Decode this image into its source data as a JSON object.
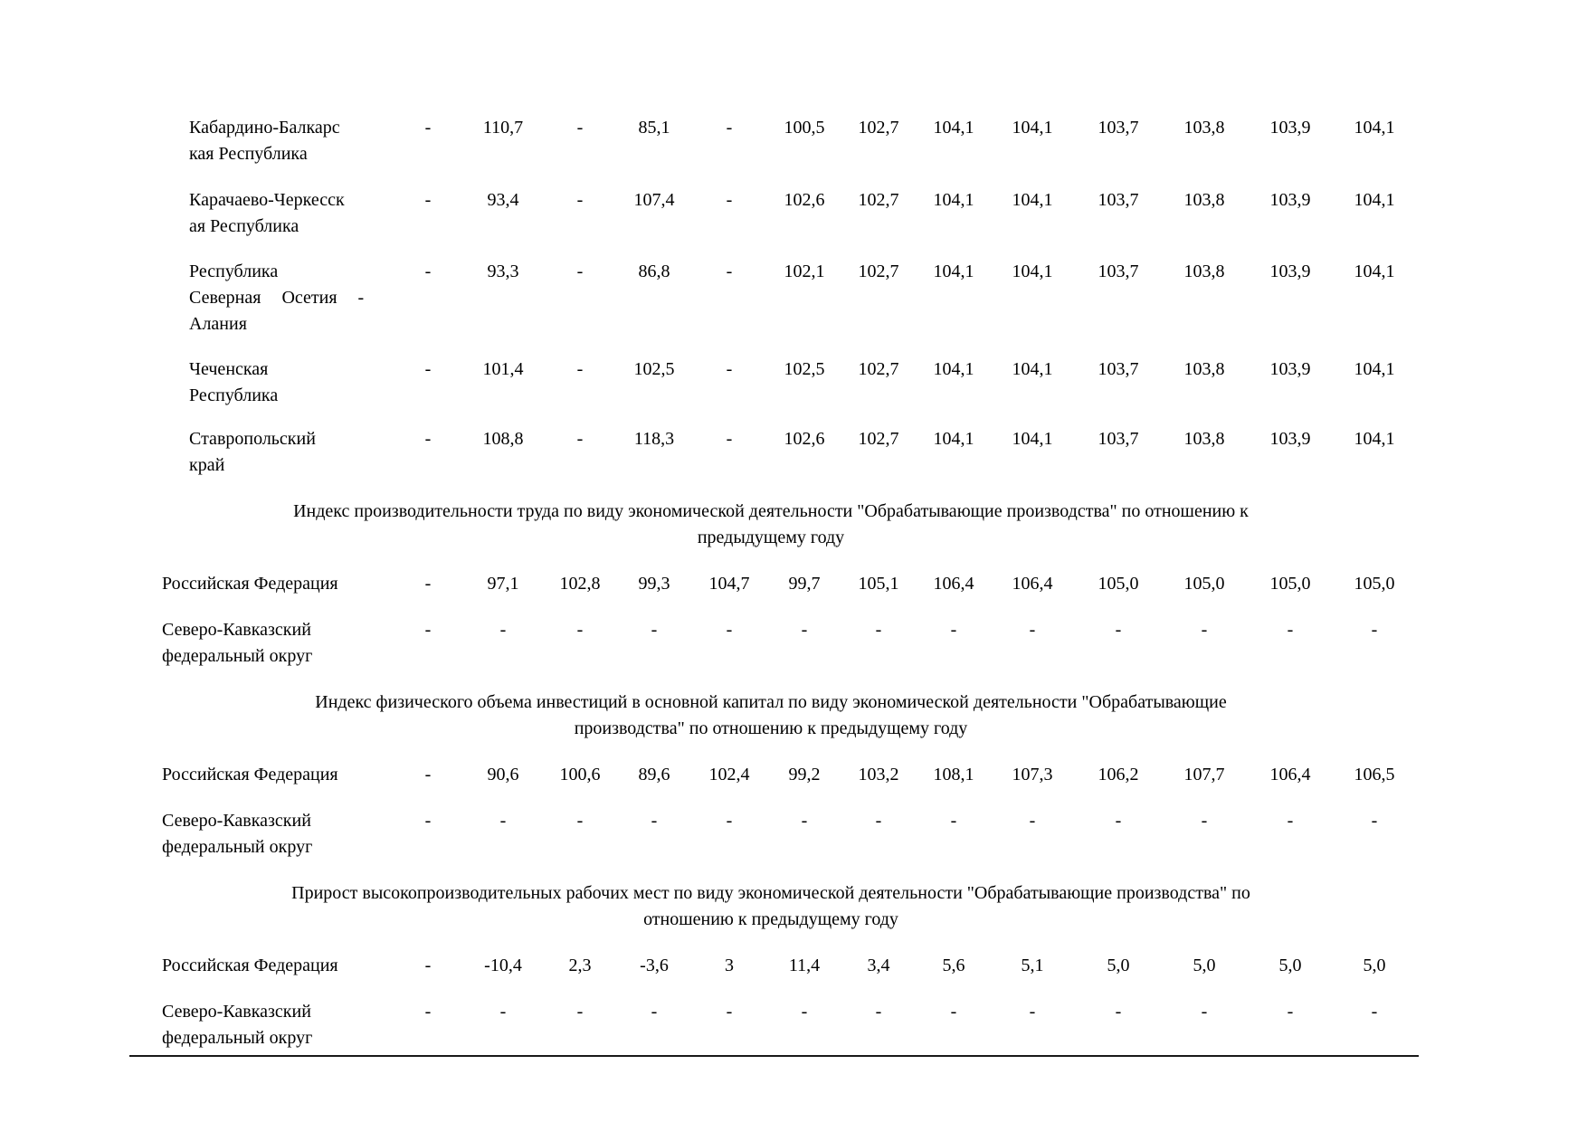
{
  "document": {
    "colors": {
      "background": "#ffffff",
      "text": "#000000",
      "rule": "#191919"
    },
    "region_block": {
      "rows": [
        {
          "label_lines": [
            "Кабардино-Балкарс",
            "кая Республика"
          ],
          "values": [
            "-",
            "110,7",
            "-",
            "85,1",
            "-",
            "100,5",
            "102,7",
            "104,1",
            "104,1",
            "103,7",
            "103,8",
            "103,9",
            "104,1"
          ]
        },
        {
          "label_lines": [
            "Карачаево-Черкесск",
            "ая Республика"
          ],
          "values": [
            "-",
            "93,4",
            "-",
            "107,4",
            "-",
            "102,6",
            "102,7",
            "104,1",
            "104,1",
            "103,7",
            "103,8",
            "103,9",
            "104,1"
          ]
        },
        {
          "label_lines": [
            "Республика",
            "Северная Осетия -",
            "Алания"
          ],
          "justify_line": 1,
          "values": [
            "-",
            "93,3",
            "-",
            "86,8",
            "-",
            "102,1",
            "102,7",
            "104,1",
            "104,1",
            "103,7",
            "103,8",
            "103,9",
            "104,1"
          ]
        },
        {
          "label_lines": [
            "Чеченская",
            "Республика"
          ],
          "values": [
            "-",
            "101,4",
            "-",
            "102,5",
            "-",
            "102,5",
            "102,7",
            "104,1",
            "104,1",
            "103,7",
            "103,8",
            "103,9",
            "104,1"
          ]
        },
        {
          "label_lines": [
            "Ставропольский",
            "край"
          ],
          "values": [
            "-",
            "108,8",
            "-",
            "118,3",
            "-",
            "102,6",
            "102,7",
            "104,1",
            "104,1",
            "103,7",
            "103,8",
            "103,9",
            "104,1"
          ]
        }
      ]
    },
    "sections": [
      {
        "title_lines": [
          "Индекс производительности труда по виду экономической деятельности \"Обрабатывающие производства\" по отношению к",
          "предыдущему году"
        ],
        "rows": [
          {
            "label_lines": [
              "Российская Федерация"
            ],
            "values": [
              "-",
              "97,1",
              "102,8",
              "99,3",
              "104,7",
              "99,7",
              "105,1",
              "106,4",
              "106,4",
              "105,0",
              "105,0",
              "105,0",
              "105,0"
            ]
          },
          {
            "label_lines": [
              "Северо-Кавказский",
              "федеральный округ"
            ],
            "values": [
              "-",
              "-",
              "-",
              "-",
              "-",
              "-",
              "-",
              "-",
              "-",
              "-",
              "-",
              "-",
              "-"
            ]
          }
        ]
      },
      {
        "title_lines": [
          "Индекс физического объема инвестиций в основной капитал по виду экономической деятельности \"Обрабатывающие",
          "производства\" по отношению к предыдущему году"
        ],
        "rows": [
          {
            "label_lines": [
              "Российская Федерация"
            ],
            "values": [
              "-",
              "90,6",
              "100,6",
              "89,6",
              "102,4",
              "99,2",
              "103,2",
              "108,1",
              "107,3",
              "106,2",
              "107,7",
              "106,4",
              "106,5"
            ]
          },
          {
            "label_lines": [
              "Северо-Кавказский",
              "федеральный округ"
            ],
            "values": [
              "-",
              "-",
              "-",
              "-",
              "-",
              "-",
              "-",
              "-",
              "-",
              "-",
              "-",
              "-",
              "-"
            ]
          }
        ]
      },
      {
        "title_lines": [
          "Прирост высокопроизводительных рабочих мест по виду экономической деятельности \"Обрабатывающие производства\" по",
          "отношению к предыдущему году"
        ],
        "rows": [
          {
            "label_lines": [
              "Российская Федерация"
            ],
            "values": [
              "-",
              "-10,4",
              "2,3",
              "-3,6",
              "3",
              "11,4",
              "3,4",
              "5,6",
              "5,1",
              "5,0",
              "5,0",
              "5,0",
              "5,0"
            ]
          },
          {
            "label_lines": [
              "Северо-Кавказский",
              "федеральный округ"
            ],
            "values": [
              "-",
              "-",
              "-",
              "-",
              "-",
              "-",
              "-",
              "-",
              "-",
              "-",
              "-",
              "-",
              "-"
            ]
          }
        ]
      }
    ]
  }
}
